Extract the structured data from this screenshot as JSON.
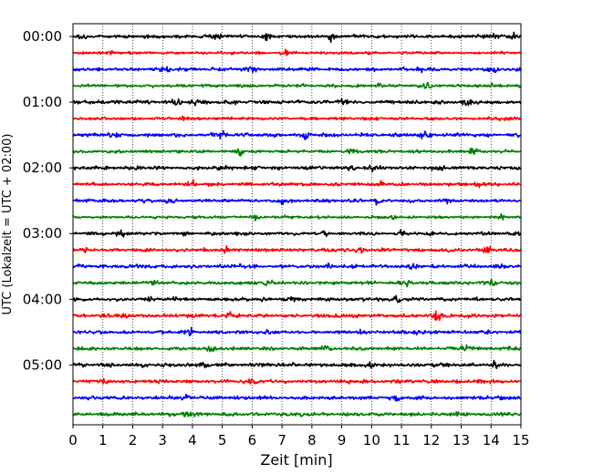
{
  "chart_data": {
    "type": "line",
    "title": "",
    "xlabel": "Zeit  [min]",
    "ylabel": "UTC (Lokalzeit = UTC + 02:00)",
    "xlim": [
      0,
      15
    ],
    "x_ticks": [
      0,
      1,
      2,
      3,
      4,
      5,
      6,
      7,
      8,
      9,
      10,
      11,
      12,
      13,
      14,
      15
    ],
    "y_tick_labels": [
      "00:00",
      "01:00",
      "02:00",
      "03:00",
      "04:00",
      "05:00"
    ],
    "grid": "vertical dotted at each minute",
    "trace_minutes": 15,
    "trace_colors": [
      "#000000",
      "#ff0000",
      "#0000ff",
      "#008000"
    ],
    "series": [
      {
        "start": "00:00",
        "color": "#000000",
        "burst_minutes": [
          0.3,
          4.8,
          6.5,
          8.7,
          14.1,
          14.8
        ],
        "amplitude": 0.55
      },
      {
        "start": "00:15",
        "color": "#ff0000",
        "burst_minutes": [
          1.3,
          7.1,
          9.9
        ],
        "amplitude": 0.4
      },
      {
        "start": "00:30",
        "color": "#0000ff",
        "burst_minutes": [
          3.1,
          6.0,
          11.6,
          14.1
        ],
        "amplitude": 0.5
      },
      {
        "start": "00:45",
        "color": "#008000",
        "burst_minutes": [
          10.3,
          11.9,
          14.0
        ],
        "amplitude": 0.45
      },
      {
        "start": "01:00",
        "color": "#000000",
        "burst_minutes": [
          3.5,
          4.0,
          9.0,
          13.2
        ],
        "amplitude": 0.55
      },
      {
        "start": "01:15",
        "color": "#ff0000",
        "burst_minutes": [
          3.7,
          9.8,
          14.5
        ],
        "amplitude": 0.45
      },
      {
        "start": "01:30",
        "color": "#0000ff",
        "burst_minutes": [
          1.3,
          5.0,
          7.8,
          11.8
        ],
        "amplitude": 0.55
      },
      {
        "start": "01:45",
        "color": "#008000",
        "burst_minutes": [
          5.6,
          9.3,
          13.4
        ],
        "amplitude": 0.45
      },
      {
        "start": "02:00",
        "color": "#000000",
        "burst_minutes": [
          4.9,
          9.3,
          10.1,
          12.3
        ],
        "amplitude": 0.55
      },
      {
        "start": "02:15",
        "color": "#ff0000",
        "burst_minutes": [
          4.0,
          10.3,
          13.6
        ],
        "amplitude": 0.5
      },
      {
        "start": "02:30",
        "color": "#0000ff",
        "burst_minutes": [
          3.2,
          7.0,
          10.2,
          12.5
        ],
        "amplitude": 0.5
      },
      {
        "start": "02:45",
        "color": "#008000",
        "burst_minutes": [
          2.8,
          6.1,
          10.7,
          14.4
        ],
        "amplitude": 0.4
      },
      {
        "start": "03:00",
        "color": "#000000",
        "burst_minutes": [
          1.6,
          3.7,
          8.4,
          11.0
        ],
        "amplitude": 0.5
      },
      {
        "start": "03:15",
        "color": "#ff0000",
        "burst_minutes": [
          0.4,
          5.1,
          9.6,
          13.9
        ],
        "amplitude": 0.5
      },
      {
        "start": "03:30",
        "color": "#0000ff",
        "burst_minutes": [
          5.6,
          8.6,
          11.4
        ],
        "amplitude": 0.55
      },
      {
        "start": "03:45",
        "color": "#008000",
        "burst_minutes": [
          2.8,
          6.5,
          11.2,
          14.0
        ],
        "amplitude": 0.5
      },
      {
        "start": "04:00",
        "color": "#000000",
        "burst_minutes": [
          2.6,
          7.4,
          10.9
        ],
        "amplitude": 0.55
      },
      {
        "start": "04:15",
        "color": "#ff0000",
        "burst_minutes": [
          1.7,
          5.3,
          8.8,
          12.2
        ],
        "amplitude": 0.55
      },
      {
        "start": "04:30",
        "color": "#0000ff",
        "burst_minutes": [
          3.9,
          6.5,
          9.7,
          11.5
        ],
        "amplitude": 0.5
      },
      {
        "start": "04:45",
        "color": "#008000",
        "burst_minutes": [
          4.6,
          8.4,
          13.1
        ],
        "amplitude": 0.55
      },
      {
        "start": "05:00",
        "color": "#000000",
        "burst_minutes": [
          2.4,
          4.4,
          9.9,
          14.1
        ],
        "amplitude": 0.55
      },
      {
        "start": "05:15",
        "color": "#ff0000",
        "burst_minutes": [
          1.1,
          6.0,
          9.3,
          13.5
        ],
        "amplitude": 0.5
      },
      {
        "start": "05:30",
        "color": "#0000ff",
        "burst_minutes": [
          3.8,
          10.8,
          14.3
        ],
        "amplitude": 0.5
      },
      {
        "start": "05:45",
        "color": "#008000",
        "burst_minutes": [
          3.8,
          7.6,
          12.8
        ],
        "amplitude": 0.55
      }
    ]
  }
}
